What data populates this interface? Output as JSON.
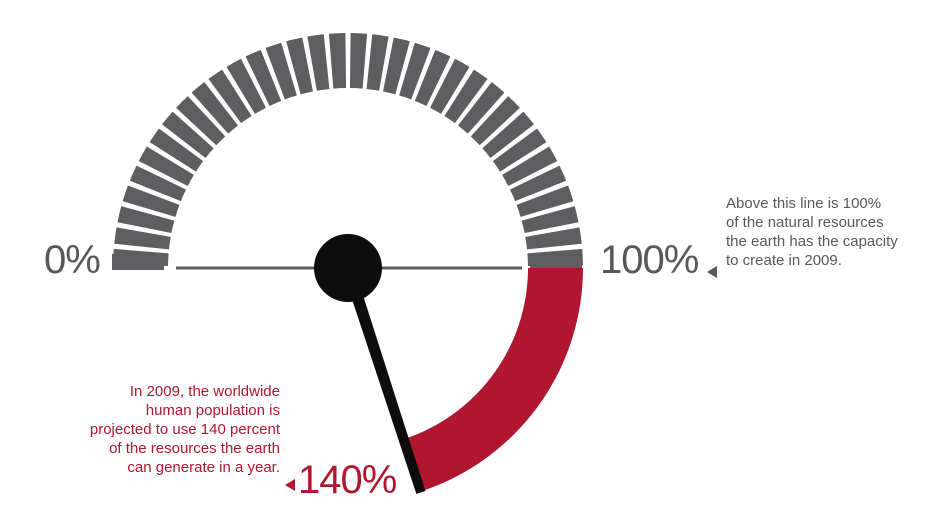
{
  "gauge": {
    "scale_min_label": "0%",
    "scale_max_label": "100%",
    "value_label": "140%",
    "value_percent": 140,
    "scale_min": 0,
    "scale_max": 100,
    "colors": {
      "grey": "#5e5e60",
      "red": "#b0162f",
      "needle": "#0d0d0d",
      "text_grey": "#58585a"
    }
  },
  "notes": {
    "top_right": "Above this line is 100%\nof the natural resources\nthe earth has the capacity\nto create in 2009.",
    "bottom_left": "In 2009, the worldwide\nhuman population is\nprojected to use 140 percent\nof the resources the earth\ncan generate in a year."
  }
}
